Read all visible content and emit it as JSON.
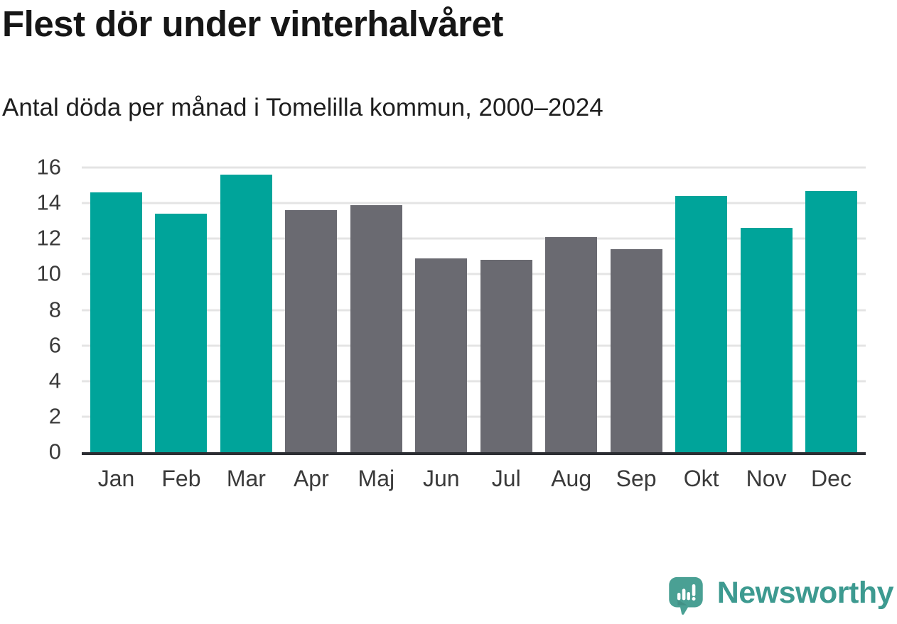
{
  "header": {
    "title": "Flest dör under vinterhalvåret",
    "subtitle": "Antal döda per månad i Tomelilla kommun, 2000–2024"
  },
  "chart_data": {
    "type": "bar",
    "title": "Flest dör under vinterhalvåret",
    "subtitle": "Antal döda per månad i Tomelilla kommun, 2000–2024",
    "categories": [
      "Jan",
      "Feb",
      "Mar",
      "Apr",
      "Maj",
      "Jun",
      "Jul",
      "Aug",
      "Sep",
      "Okt",
      "Nov",
      "Dec"
    ],
    "values": [
      14.6,
      13.4,
      15.6,
      13.6,
      13.9,
      10.9,
      10.8,
      12.1,
      11.4,
      14.4,
      12.6,
      14.7
    ],
    "bar_groups": [
      "winter",
      "winter",
      "winter",
      "summer",
      "summer",
      "summer",
      "summer",
      "summer",
      "summer",
      "winter",
      "winter",
      "winter"
    ],
    "group_colors": {
      "winter": "#00a49a",
      "summer": "#6a6a71"
    },
    "xlabel": "",
    "ylabel": "",
    "ylim": [
      0,
      16
    ],
    "yticks": [
      0,
      2,
      4,
      6,
      8,
      10,
      12,
      14,
      16
    ],
    "grid": true,
    "gridline_color": "#e4e4e4",
    "axis_color": "#2c2e33",
    "legend": "none"
  },
  "footer": {
    "brand": "Newsworthy",
    "logo_icon": "speech-bubble-with-bar-chart-and-exclamation",
    "logo_color": "#4aa094",
    "brand_text_color": "#3d9a90"
  }
}
